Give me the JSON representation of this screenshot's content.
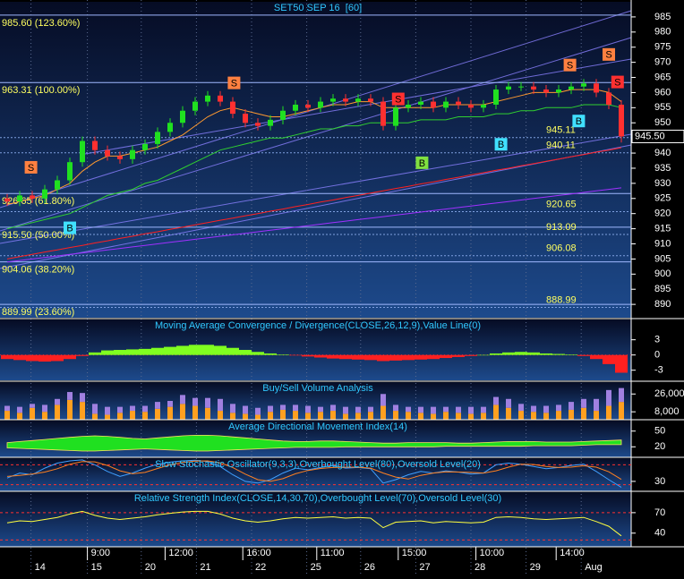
{
  "chart_data": [
    {
      "type": "candlestick",
      "title": "SET50 SEP 16  [60]",
      "open": [
        925,
        924,
        926,
        925,
        928,
        931,
        937,
        944,
        941,
        939,
        938,
        941,
        943,
        947,
        950,
        954,
        957,
        959,
        957,
        953,
        950,
        949,
        951,
        954,
        956,
        955,
        957,
        958,
        957,
        958,
        957,
        949,
        955,
        956,
        957,
        955,
        957,
        956,
        955,
        956,
        961,
        962,
        962,
        961,
        960,
        961,
        962,
        963,
        960,
        956
      ],
      "high": [
        926.5,
        927.5,
        927.5,
        929.5,
        932.5,
        938.5,
        945.5,
        945.5,
        942.5,
        940.5,
        942.5,
        944.5,
        948.5,
        951.5,
        955.5,
        958.5,
        960.5,
        960.5,
        958.5,
        954.5,
        951.5,
        952.5,
        955.5,
        957.5,
        957.5,
        958.5,
        959.5,
        959.5,
        959.5,
        959.5,
        958.5,
        956.5,
        957.5,
        958.5,
        958.5,
        958.5,
        958.5,
        957.5,
        957.5,
        962.5,
        963.5,
        963.5,
        963.5,
        962.5,
        962.5,
        963.5,
        964.5,
        964.5,
        961.5,
        957.5
      ],
      "low": [
        922.5,
        922.5,
        923.5,
        923.5,
        926.5,
        929.5,
        935.5,
        939.5,
        937.5,
        936.5,
        936.5,
        939.5,
        941.5,
        945.5,
        948.5,
        952.5,
        955.5,
        955.5,
        951.5,
        948.5,
        947.5,
        947.5,
        949.5,
        952.5,
        953.5,
        953.5,
        955.5,
        955.5,
        955.5,
        955.5,
        947.5,
        947.5,
        953.5,
        954.5,
        953.5,
        953.5,
        954.5,
        953.5,
        953.5,
        954.5,
        959.5,
        960.5,
        959.5,
        958.5,
        958.5,
        959.5,
        960.5,
        958.5,
        954.5,
        943.5
      ],
      "close": [
        924,
        926,
        925,
        928,
        931,
        937,
        944,
        941,
        939,
        938,
        941,
        943,
        947,
        950,
        954,
        957,
        959,
        957,
        953,
        950,
        949,
        951,
        954,
        956,
        955,
        957,
        958,
        957,
        958,
        957,
        949,
        955,
        956,
        957,
        955,
        957,
        956,
        955,
        956,
        961,
        962,
        962,
        961,
        960,
        961,
        962,
        963,
        960,
        956,
        945.5
      ],
      "up_color": "#20e020",
      "down_color": "#ff3030",
      "overlays": [
        {
          "color": "#ff9a30",
          "values": [
            923,
            924,
            925,
            926,
            928,
            930,
            934,
            937,
            939,
            939,
            940,
            941,
            942,
            944,
            946,
            949,
            952,
            954,
            955,
            954,
            953,
            952,
            952,
            953,
            954,
            955,
            956,
            956,
            957,
            957,
            955,
            955,
            955,
            955,
            955,
            956,
            956,
            956,
            956,
            957,
            958,
            959,
            960,
            960,
            960,
            961,
            961,
            961,
            960,
            957
          ]
        },
        {
          "color": "#30d030",
          "values": [
            915,
            916,
            917,
            918,
            919,
            920,
            922,
            924,
            926,
            927,
            928,
            930,
            931,
            933,
            935,
            937,
            939,
            941,
            942,
            943,
            944,
            945,
            945,
            946,
            947,
            948,
            948,
            949,
            949,
            950,
            950,
            950,
            950,
            951,
            951,
            951,
            952,
            952,
            952,
            953,
            953,
            954,
            954,
            955,
            955,
            955,
            956,
            956,
            956,
            955
          ]
        },
        {
          "color": "#ff2020",
          "values": [
            905,
            905.8,
            906.5,
            907.3,
            908,
            908.8,
            909.5,
            910.3,
            911,
            911.8,
            912.5,
            913.3,
            914,
            914.8,
            915.5,
            916.3,
            917,
            917.8,
            918.5,
            919.3,
            920,
            920.8,
            921.5,
            922.3,
            923,
            923.8,
            924.5,
            925.3,
            926,
            926.8,
            927.5,
            928.3,
            929,
            929.8,
            930.5,
            931.3,
            932,
            932.8,
            933.5,
            934.3,
            935,
            935.8,
            936.5,
            937.3,
            938,
            938.8,
            939.5,
            940.3,
            941,
            941.8
          ]
        },
        {
          "color": "#a030ff",
          "values": [
            904,
            904.5,
            905,
            905.5,
            906,
            906.5,
            907,
            907.5,
            908,
            908.5,
            909,
            909.5,
            910,
            910.5,
            911,
            911.5,
            912,
            912.5,
            913,
            913.5,
            914,
            914.5,
            915,
            915.5,
            916,
            916.5,
            917,
            917.5,
            918,
            918.5,
            919,
            919.5,
            920,
            920.5,
            921,
            921.5,
            922,
            922.5,
            923,
            923.5,
            924,
            924.5,
            925,
            925.5,
            926,
            926.5,
            927,
            927.5,
            928,
            928.5
          ]
        }
      ],
      "levels": [
        {
          "value": 985.6,
          "label": "985.60 (123.60%)"
        },
        {
          "value": 963.31,
          "label": "963.31 (100.00%)"
        },
        {
          "value": 926.65,
          "label": "926.65 (61.80%)"
        },
        {
          "value": 915.5,
          "label": "915.50 (50.00%)"
        },
        {
          "value": 904.06,
          "label": "904.06 (38.20%)"
        },
        {
          "value": 889.99,
          "label": "889.99 (23.60%)"
        }
      ],
      "price_marks": [
        945.11,
        940.11,
        920.65,
        913.09,
        906.08,
        888.99
      ],
      "last_price": {
        "value": 945.5,
        "label": "945.50"
      },
      "signals": [
        {
          "label": "S",
          "x": 1.9,
          "y": 935.3,
          "color": "#ff8040"
        },
        {
          "label": "S",
          "x": 18.1,
          "y": 963.2,
          "color": "#ff8040"
        },
        {
          "label": "S",
          "x": 31.2,
          "y": 957.9,
          "color": "#ff3030"
        },
        {
          "label": "S",
          "x": 44.9,
          "y": 969.1,
          "color": "#ff8040"
        },
        {
          "label": "S",
          "x": 48,
          "y": 972.6,
          "color": "#ff8040"
        },
        {
          "label": "S",
          "x": 48.7,
          "y": 963.5,
          "color": "#ff3030"
        },
        {
          "label": "B",
          "x": 5,
          "y": 915.3,
          "color": "#40e0ff"
        },
        {
          "label": "B",
          "x": 33.1,
          "y": 936.8,
          "color": "#80e040"
        },
        {
          "label": "B",
          "x": 39.4,
          "y": 942.9,
          "color": "#40e0ff"
        },
        {
          "label": "B",
          "x": 45.6,
          "y": 950.6,
          "color": "#40e0ff"
        }
      ],
      "ylim": [
        885.6,
        990
      ],
      "yticks": [
        890,
        895,
        900,
        905,
        910,
        915,
        920,
        925,
        930,
        935,
        940,
        945,
        950,
        955,
        960,
        965,
        970,
        975,
        980,
        985
      ]
    },
    {
      "type": "bar",
      "title": "Moving Average Convergence / Divergence(CLOSE,26,12,9),Value Line(0)",
      "values": [
        -0.8,
        -1,
        -1.2,
        -1.3,
        -1.2,
        -0.8,
        -0.2,
        0.5,
        0.9,
        1,
        1.1,
        1.2,
        1.4,
        1.6,
        1.8,
        2,
        2,
        1.8,
        1.4,
        1,
        0.6,
        0.3,
        0.1,
        -0.1,
        -0.3,
        -0.5,
        -0.7,
        -0.8,
        -0.9,
        -1,
        -1.2,
        -1.1,
        -1,
        -0.9,
        -0.8,
        -0.6,
        -0.4,
        -0.2,
        0,
        0.3,
        0.5,
        0.6,
        0.5,
        0.3,
        0.2,
        0.1,
        -0.2,
        -0.8,
        -1.8,
        -3.5
      ],
      "positive_color": "#80ff20",
      "negative_color": "#ff2020",
      "ylim": [
        -5,
        7
      ],
      "yticks": [
        -3,
        0,
        3
      ]
    },
    {
      "type": "stacked_bar",
      "title": "Buy/Sell Volume Analysis",
      "series": [
        {
          "color": "#ffa020",
          "values": [
            9000,
            7000,
            12000,
            8000,
            15000,
            20000,
            18000,
            6000,
            5000,
            7000,
            9000,
            8000,
            11000,
            13000,
            16000,
            14000,
            12000,
            9000,
            7000,
            6000,
            5000,
            8000,
            10000,
            9000,
            7000,
            8000,
            9000,
            6000,
            7000,
            8000,
            14000,
            9000,
            8000,
            7000,
            6000,
            8000,
            7000,
            6000,
            7000,
            15000,
            12000,
            9000,
            8000,
            7000,
            9000,
            10000,
            12000,
            9000,
            14000,
            18000
          ]
        },
        {
          "color": "#a080e0",
          "values": [
            5000,
            6000,
            4000,
            7000,
            6000,
            8000,
            9000,
            10000,
            8000,
            6000,
            5000,
            6000,
            7000,
            6000,
            9000,
            8000,
            10000,
            12000,
            9000,
            8000,
            7000,
            6000,
            5000,
            6000,
            7000,
            5000,
            6000,
            7000,
            6000,
            5000,
            12000,
            6000,
            5000,
            6000,
            7000,
            5000,
            6000,
            7000,
            6000,
            8000,
            9000,
            7000,
            6000,
            7000,
            6000,
            8000,
            9000,
            12000,
            16000,
            14000
          ]
        }
      ],
      "ylim": [
        0,
        38000
      ],
      "yticks": [
        {
          "value": 8000,
          "label": "8,000"
        },
        {
          "value": 26000,
          "label": "26,000"
        }
      ]
    },
    {
      "type": "band",
      "title": "Average Directional Movement Index(14)",
      "color": "#20e020",
      "upper": [
        28,
        30,
        32,
        34,
        36,
        38,
        40,
        41,
        40,
        38,
        36,
        35,
        37,
        39,
        41,
        42,
        42,
        41,
        39,
        37,
        35,
        33,
        31,
        30,
        30,
        31,
        31,
        30,
        29,
        28,
        27,
        27,
        28,
        28,
        28,
        28,
        27,
        27,
        28,
        29,
        30,
        30,
        30,
        29,
        29,
        29,
        30,
        31,
        32,
        33
      ],
      "lower": [
        18,
        17,
        16,
        15,
        14,
        13,
        12,
        12,
        13,
        14,
        15,
        16,
        15,
        14,
        13,
        12,
        12,
        13,
        14,
        15,
        16,
        17,
        18,
        19,
        19,
        19,
        19,
        20,
        20,
        20,
        20,
        20,
        20,
        20,
        20,
        21,
        21,
        21,
        21,
        21,
        21,
        21,
        22,
        22,
        22,
        22,
        23,
        24,
        24,
        24
      ],
      "ylim": [
        0,
        70
      ],
      "yticks": [
        20,
        50
      ]
    },
    {
      "type": "line",
      "title": "Slow Stochastic Oscillator(9,3,3),Overbought Level(80),Oversold Level(20)",
      "series": [
        {
          "color": "#40a0ff",
          "values": [
            40,
            55,
            50,
            70,
            85,
            92,
            95,
            80,
            60,
            45,
            55,
            70,
            82,
            88,
            92,
            94,
            90,
            75,
            50,
            30,
            25,
            35,
            55,
            70,
            65,
            72,
            78,
            70,
            72,
            68,
            25,
            35,
            50,
            60,
            55,
            62,
            58,
            52,
            55,
            80,
            85,
            82,
            75,
            68,
            72,
            78,
            82,
            60,
            35,
            12
          ]
        },
        {
          "color": "#ff8020",
          "values": [
            45,
            48,
            52,
            58,
            68,
            82,
            90,
            89,
            78,
            62,
            53,
            57,
            69,
            80,
            87,
            91,
            92,
            86,
            72,
            52,
            35,
            30,
            38,
            53,
            63,
            69,
            72,
            73,
            73,
            70,
            55,
            43,
            37,
            48,
            55,
            59,
            58,
            57,
            55,
            62,
            73,
            82,
            81,
            75,
            72,
            73,
            77,
            73,
            59,
            36
          ]
        }
      ],
      "ref_lines": [
        80,
        20
      ],
      "ref_color": "#ff3030",
      "ylim": [
        0,
        100
      ],
      "yticks": [
        30
      ]
    },
    {
      "type": "line",
      "title": "Relative Strength Index(CLOSE,14,30,70),Overbought Level(70),Oversold Level(30)",
      "series": [
        {
          "color": "#ffff40",
          "values": [
            55,
            58,
            57,
            60,
            63,
            68,
            72,
            66,
            62,
            60,
            62,
            64,
            67,
            69,
            71,
            72,
            72,
            68,
            62,
            58,
            56,
            58,
            61,
            63,
            62,
            63,
            64,
            62,
            63,
            62,
            48,
            56,
            57,
            58,
            55,
            57,
            56,
            55,
            56,
            63,
            64,
            63,
            61,
            60,
            61,
            62,
            63,
            57,
            50,
            36
          ]
        }
      ],
      "ref_lines": [
        70,
        30
      ],
      "ref_color": "#ff3030",
      "ylim": [
        20,
        100
      ],
      "yticks": [
        40,
        70
      ]
    }
  ],
  "x_axis": {
    "day_ticks": [
      {
        "value": 1.9,
        "label": "14"
      },
      {
        "value": 6.4,
        "label": "15"
      },
      {
        "value": 10.7,
        "label": "20"
      },
      {
        "value": 15.1,
        "label": "21"
      },
      {
        "value": 19.5,
        "label": "22"
      },
      {
        "value": 23.9,
        "label": "25"
      },
      {
        "value": 28.2,
        "label": "26"
      },
      {
        "value": 32.6,
        "label": "27"
      },
      {
        "value": 37,
        "label": "28"
      },
      {
        "value": 41.4,
        "label": "29"
      },
      {
        "value": 45.8,
        "label": "Aug"
      }
    ],
    "time_ticks": [
      {
        "value": 6.4,
        "label": "9:00"
      },
      {
        "value": 12.6,
        "label": "12:00"
      },
      {
        "value": 18.8,
        "label": "16:00"
      },
      {
        "value": 24.7,
        "label": "11:00"
      },
      {
        "value": 31.2,
        "label": "15:00"
      },
      {
        "value": 37.4,
        "label": "10:00"
      },
      {
        "value": 43.8,
        "label": "14:00"
      }
    ]
  }
}
